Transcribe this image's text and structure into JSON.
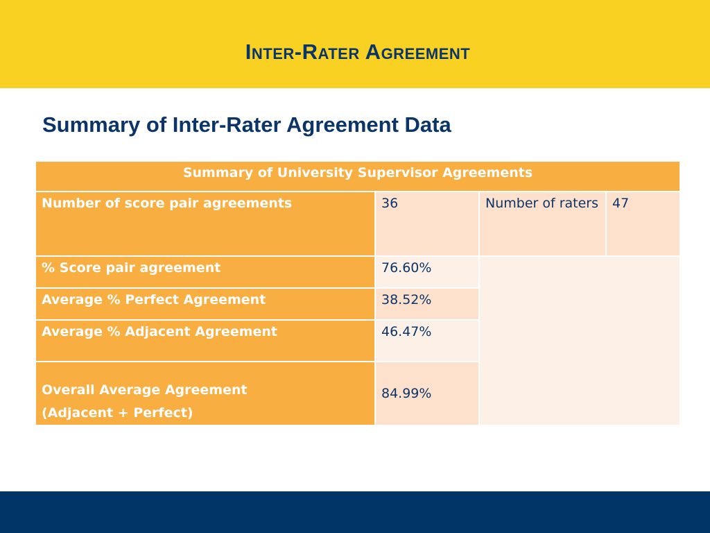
{
  "slide": {
    "title": "Inter-Rater Agreement",
    "subtitle": "Summary of Inter-Rater Agreement Data"
  },
  "table": {
    "caption": "Summary of University Supervisor Agreements",
    "rows": [
      {
        "label": "Number of score pair agreements",
        "value": "36",
        "extra_label": "Number of raters",
        "extra_value": "47"
      },
      {
        "label": "% Score pair agreement",
        "value": "76.60%"
      },
      {
        "label": "Average % Perfect Agreement",
        "value": "38.52%"
      },
      {
        "label": "Average % Adjacent Agreement",
        "value": "46.47%"
      },
      {
        "label_line1": "Overall Average Agreement",
        "label_line2": "(Adjacent + Perfect)",
        "value": "84.99%"
      }
    ]
  },
  "colors": {
    "header_band": "#f9d122",
    "title_text": "#0b3468",
    "footer_band": "#003366",
    "table_label_fill": "#f9ae42",
    "table_value_fill_dark": "#fde1cd",
    "table_value_fill_light": "#fdf0e6"
  }
}
